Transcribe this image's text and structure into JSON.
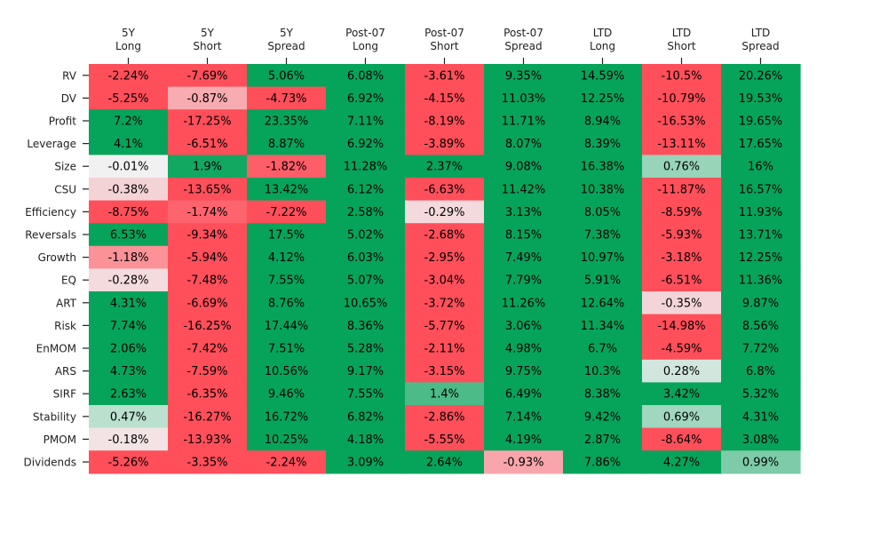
{
  "chart_data": {
    "type": "heatmap",
    "columns": [
      [
        "5Y",
        "Long"
      ],
      [
        "5Y",
        "Short"
      ],
      [
        "5Y",
        "Spread"
      ],
      [
        "Post-07",
        "Long"
      ],
      [
        "Post-07",
        "Short"
      ],
      [
        "Post-07",
        "Spread"
      ],
      [
        "LTD",
        "Long"
      ],
      [
        "LTD",
        "Short"
      ],
      [
        "LTD",
        "Spread"
      ]
    ],
    "rows": [
      "RV",
      "DV",
      "Profit",
      "Leverage",
      "Size",
      "CSU",
      "Efficiency",
      "Reversals",
      "Growth",
      "EQ",
      "ART",
      "Risk",
      "EnMOM",
      "ARS",
      "SIRF",
      "Stability",
      "PMOM",
      "Dividends"
    ],
    "values": [
      [
        -2.24,
        -7.69,
        5.06,
        6.08,
        -3.61,
        9.35,
        14.59,
        -10.5,
        20.26
      ],
      [
        -5.25,
        -0.87,
        -4.73,
        6.92,
        -4.15,
        11.03,
        12.25,
        -10.79,
        19.53
      ],
      [
        7.2,
        -17.25,
        23.35,
        7.11,
        -8.19,
        11.71,
        8.94,
        -16.53,
        19.65
      ],
      [
        4.1,
        -6.51,
        8.87,
        6.92,
        -3.89,
        8.07,
        8.39,
        -13.11,
        17.65
      ],
      [
        -0.01,
        1.9,
        -1.82,
        11.28,
        2.37,
        9.08,
        16.38,
        0.76,
        16.0
      ],
      [
        -0.38,
        -13.65,
        13.42,
        6.12,
        -6.63,
        11.42,
        10.38,
        -11.87,
        16.57
      ],
      [
        -8.75,
        -1.74,
        -7.22,
        2.58,
        -0.29,
        3.13,
        8.05,
        -8.59,
        11.93
      ],
      [
        6.53,
        -9.34,
        17.5,
        5.02,
        -2.68,
        8.15,
        7.38,
        -5.93,
        13.71
      ],
      [
        -1.18,
        -5.94,
        4.12,
        6.03,
        -2.95,
        7.49,
        10.97,
        -3.18,
        12.25
      ],
      [
        -0.28,
        -7.48,
        7.55,
        5.07,
        -3.04,
        7.79,
        5.91,
        -6.51,
        11.36
      ],
      [
        4.31,
        -6.69,
        8.76,
        10.65,
        -3.72,
        11.26,
        12.64,
        -0.35,
        9.87
      ],
      [
        7.74,
        -16.25,
        17.44,
        8.36,
        -5.77,
        3.06,
        11.34,
        -14.98,
        8.56
      ],
      [
        2.06,
        -7.42,
        7.51,
        5.28,
        -2.11,
        4.98,
        6.7,
        -4.59,
        7.72
      ],
      [
        4.73,
        -7.59,
        10.56,
        9.17,
        -3.15,
        9.75,
        10.3,
        0.28,
        6.8
      ],
      [
        2.63,
        -6.35,
        9.46,
        7.55,
        1.4,
        6.49,
        8.38,
        3.42,
        5.32
      ],
      [
        0.47,
        -16.27,
        16.72,
        6.82,
        -2.86,
        7.14,
        9.42,
        0.69,
        4.31
      ],
      [
        -0.18,
        -13.93,
        10.25,
        4.18,
        -5.55,
        4.19,
        2.87,
        -8.64,
        3.08
      ],
      [
        -5.26,
        -3.35,
        -2.24,
        3.09,
        2.64,
        -0.93,
        7.86,
        4.27,
        0.99
      ]
    ],
    "value_suffix": "%",
    "color_scale": {
      "negative": "#ff4f5a",
      "zero": "#f2f2f2",
      "positive": "#06a45a",
      "saturation_at": 2
    },
    "grid": false,
    "colorbar": false,
    "x_tick_position": "top"
  }
}
